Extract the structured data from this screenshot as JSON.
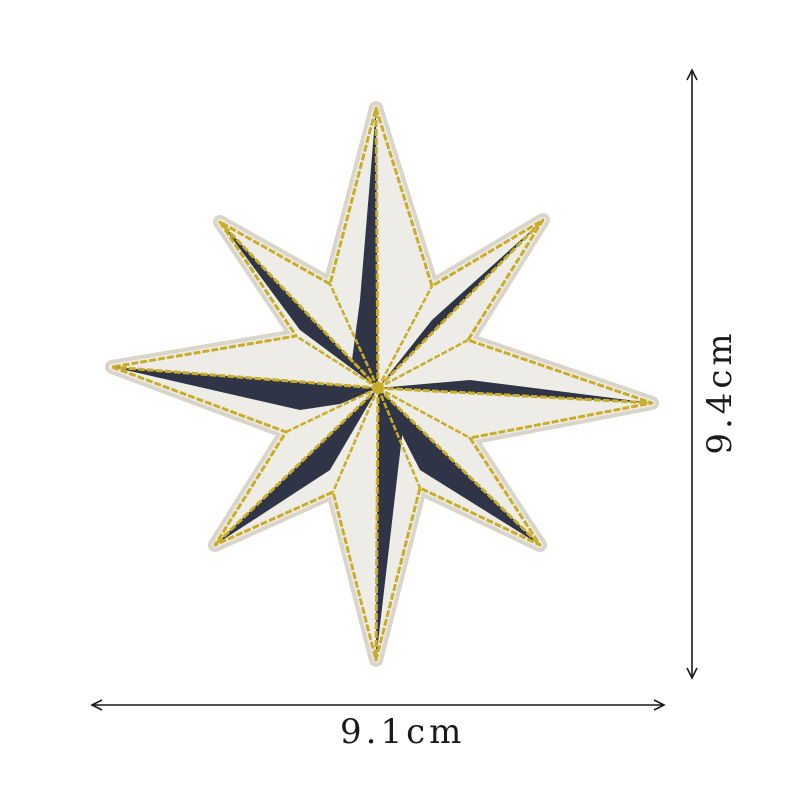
{
  "image": {
    "subject": "eight-point-star-patch",
    "colors": {
      "background": "#ffffff",
      "patch_base": "#eeece6",
      "patch_edge": "#d9d5cb",
      "navy": "#2f3547",
      "gold": "#c9ad2a"
    }
  },
  "dimensions": {
    "width_label": "9.1cm",
    "height_label": "9.4cm",
    "arrow_color": "#1a1a1a"
  }
}
